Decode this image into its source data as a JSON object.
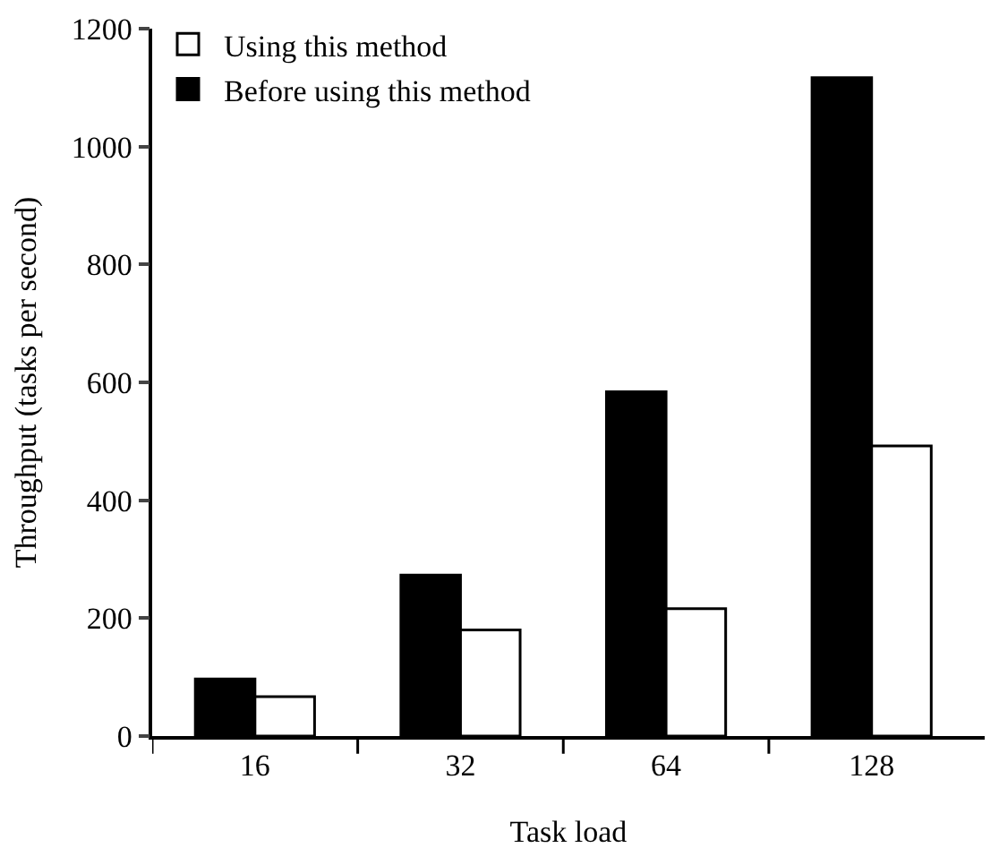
{
  "chart_data": {
    "type": "bar",
    "xlabel": "Task load",
    "ylabel": "Throughput (tasks per second)",
    "categories": [
      "16",
      "32",
      "64",
      "128"
    ],
    "series": [
      {
        "name": "Before using this method",
        "color": "#000000",
        "values": [
          97,
          273,
          584,
          1117
        ]
      },
      {
        "name": "Using this method",
        "color": "#ffffff",
        "values": [
          67,
          180,
          216,
          492
        ]
      }
    ],
    "ylim": [
      0,
      1200
    ],
    "yticks": [
      0,
      200,
      400,
      600,
      800,
      1000,
      1200
    ],
    "legend": "top left"
  }
}
